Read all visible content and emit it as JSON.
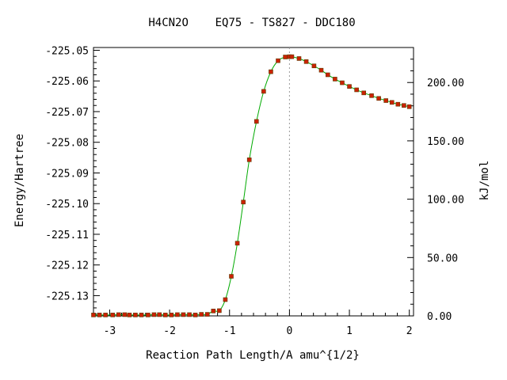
{
  "chart_data": {
    "type": "line",
    "title": "H4CN2O    EQ75 - TS827 - DDC180",
    "xlabel": "Reaction Path Length/A amu^{1/2}",
    "ylabel": "Energy/Hartree",
    "y2label": "kJ/mol",
    "xlim": [
      -3.27,
      2.07
    ],
    "ylim": [
      -225.1366,
      -225.0491
    ],
    "y2lim": [
      0.0,
      230.0
    ],
    "x_ticks": [
      -3,
      -2,
      -1,
      0,
      1,
      2
    ],
    "x_tick_labels": [
      "-3",
      "-2",
      "-1",
      "0",
      "1",
      "2"
    ],
    "y_ticks": [
      -225.05,
      -225.06,
      -225.07,
      -225.08,
      -225.09,
      -225.1,
      -225.11,
      -225.12,
      -225.13
    ],
    "y_tick_labels": [
      "-225.05",
      "-225.06",
      "-225.07",
      "-225.08",
      "-225.09",
      "-225.10",
      "-225.11",
      "-225.12",
      "-225.13"
    ],
    "y2_ticks": [
      0,
      50,
      100,
      150,
      200
    ],
    "y2_tick_labels": [
      "0.00",
      "50.00",
      "100.00",
      "150.00",
      "200.00"
    ],
    "ts_marker_x": 0.0,
    "grid": false,
    "colors": {
      "line": "#00aa00",
      "marker": "#cc2200",
      "ts_line": "#999999",
      "axis": "#000000"
    },
    "series": [
      {
        "x": [
          -3.27,
          -3.17,
          -3.07,
          -2.95,
          -2.85,
          -2.75,
          -2.67,
          -2.57,
          -2.47,
          -2.36,
          -2.26,
          -2.17,
          -2.07,
          -1.97,
          -1.87,
          -1.77,
          -1.67,
          -1.57,
          -1.47,
          -1.37,
          -1.27,
          -1.17,
          -1.07,
          -0.97,
          -0.87,
          -0.77,
          -0.67,
          -0.55,
          -0.43,
          -0.31,
          -0.19,
          -0.07,
          0.0,
          0.04,
          0.16,
          0.28,
          0.41,
          0.53,
          0.64,
          0.76,
          0.88,
          1.0,
          1.12,
          1.24,
          1.37,
          1.49,
          1.61,
          1.71,
          1.81,
          1.91,
          2.0
        ],
        "y": [
          -225.1363,
          -225.1363,
          -225.1363,
          -225.1363,
          -225.1362,
          -225.1362,
          -225.1363,
          -225.1363,
          -225.1363,
          -225.1363,
          -225.1362,
          -225.1362,
          -225.1363,
          -225.1363,
          -225.1362,
          -225.1362,
          -225.1362,
          -225.1363,
          -225.1361,
          -225.1361,
          -225.135,
          -225.1349,
          -225.1313,
          -225.1237,
          -225.1129,
          -225.0995,
          -225.0857,
          -225.0732,
          -225.0634,
          -225.057,
          -225.0534,
          -225.0522,
          -225.0521,
          -225.0521,
          -225.0527,
          -225.0537,
          -225.0551,
          -225.0565,
          -225.058,
          -225.0594,
          -225.0606,
          -225.0618,
          -225.0629,
          -225.0639,
          -225.0648,
          -225.0657,
          -225.0664,
          -225.067,
          -225.0676,
          -225.068,
          -225.0684
        ]
      }
    ]
  }
}
